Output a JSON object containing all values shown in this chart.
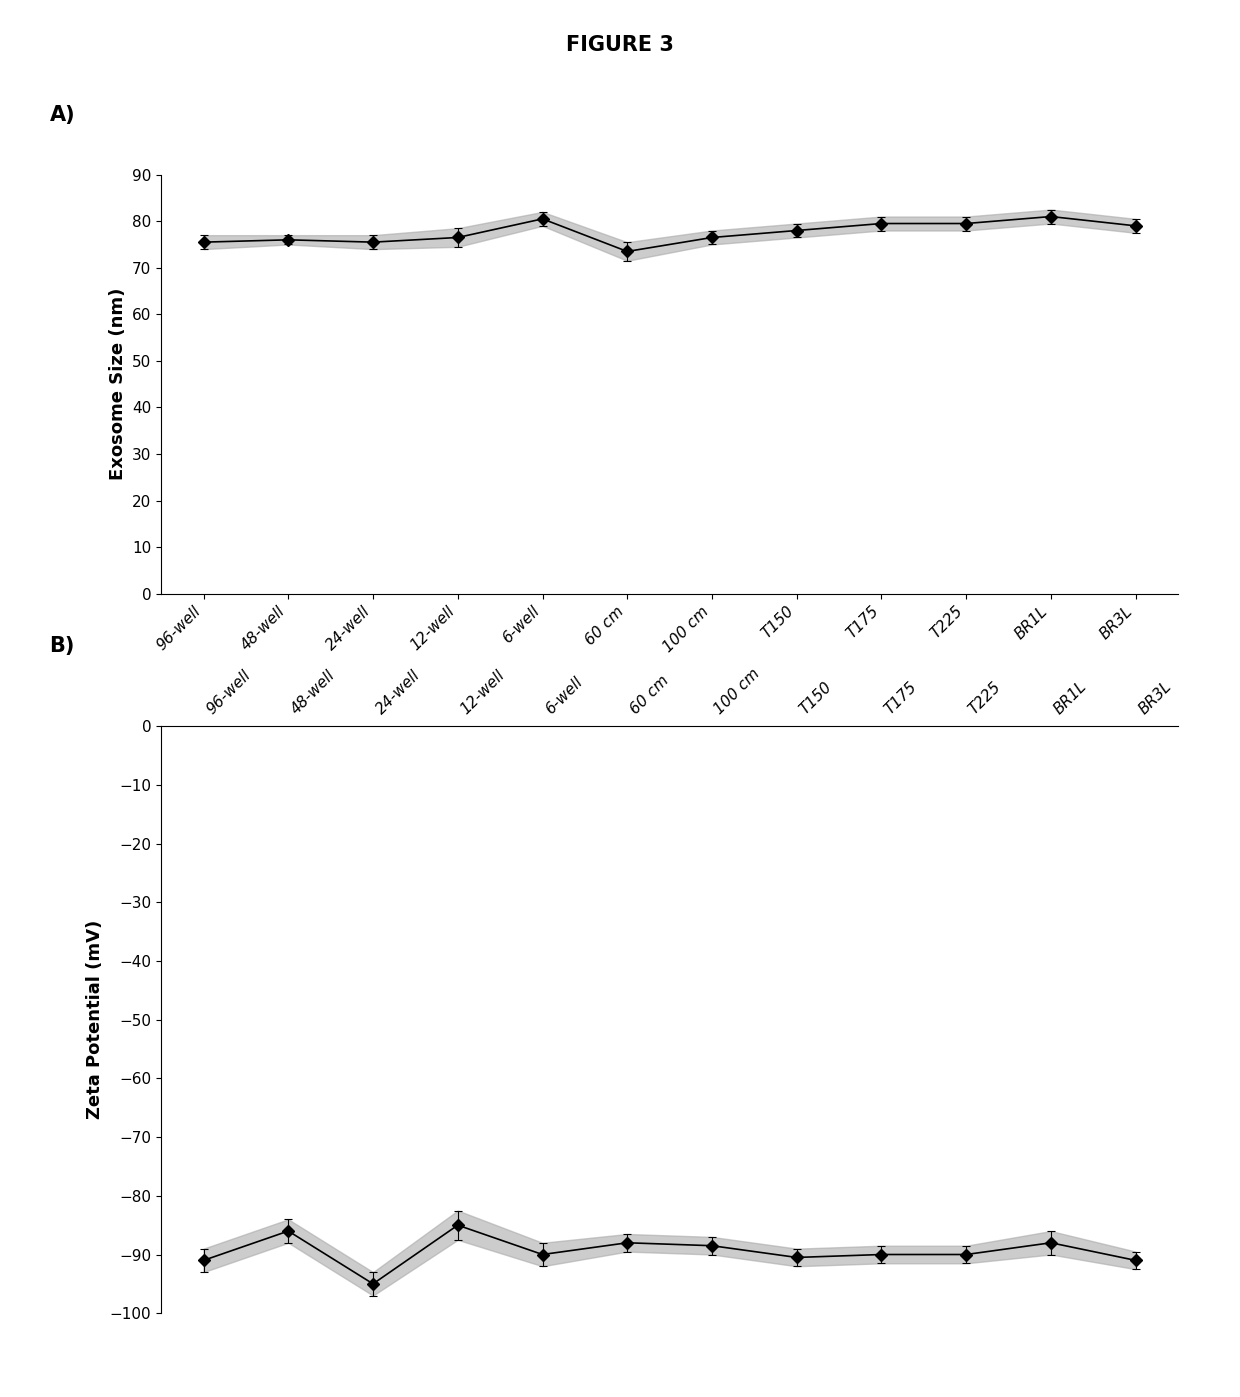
{
  "title": "FIGURE 3",
  "categories": [
    "96-well",
    "48-well",
    "24-well",
    "12-well",
    "6-well",
    "60 cm",
    "100 cm",
    "T150",
    "T175",
    "T225",
    "BR1L",
    "BR3L"
  ],
  "panel_A": {
    "ylabel": "Exosome Size (nm)",
    "ylim": [
      0,
      90
    ],
    "yticks": [
      0,
      10,
      20,
      30,
      40,
      50,
      60,
      70,
      80,
      90
    ],
    "values": [
      75.5,
      76.0,
      75.5,
      76.5,
      80.5,
      73.5,
      76.5,
      78.0,
      79.5,
      79.5,
      81.0,
      79.0
    ],
    "errors": [
      1.5,
      1.0,
      1.5,
      2.0,
      1.5,
      2.0,
      1.5,
      1.5,
      1.5,
      1.5,
      1.5,
      1.5
    ]
  },
  "panel_B": {
    "ylabel": "Zeta Potential (mV)",
    "ylim": [
      -100,
      0
    ],
    "yticks": [
      0,
      -10,
      -20,
      -30,
      -40,
      -50,
      -60,
      -70,
      -80,
      -90,
      -100
    ],
    "values": [
      -91.0,
      -86.0,
      -95.0,
      -85.0,
      -90.0,
      -88.0,
      -88.5,
      -90.5,
      -90.0,
      -90.0,
      -88.0,
      -91.0
    ],
    "errors": [
      2.0,
      2.0,
      2.0,
      2.5,
      2.0,
      1.5,
      1.5,
      1.5,
      1.5,
      1.5,
      2.0,
      1.5
    ]
  },
  "line_color": "#000000",
  "marker": "D",
  "markersize": 6,
  "linewidth": 1.2,
  "capsize": 3,
  "elinewidth": 0.8,
  "band_color": "#aaaaaa",
  "band_alpha": 0.6,
  "background_color": "#ffffff",
  "label_A": "A)",
  "label_B": "B)",
  "title_fontsize": 15,
  "label_fontsize": 15,
  "axis_label_fontsize": 13,
  "tick_fontsize": 11
}
